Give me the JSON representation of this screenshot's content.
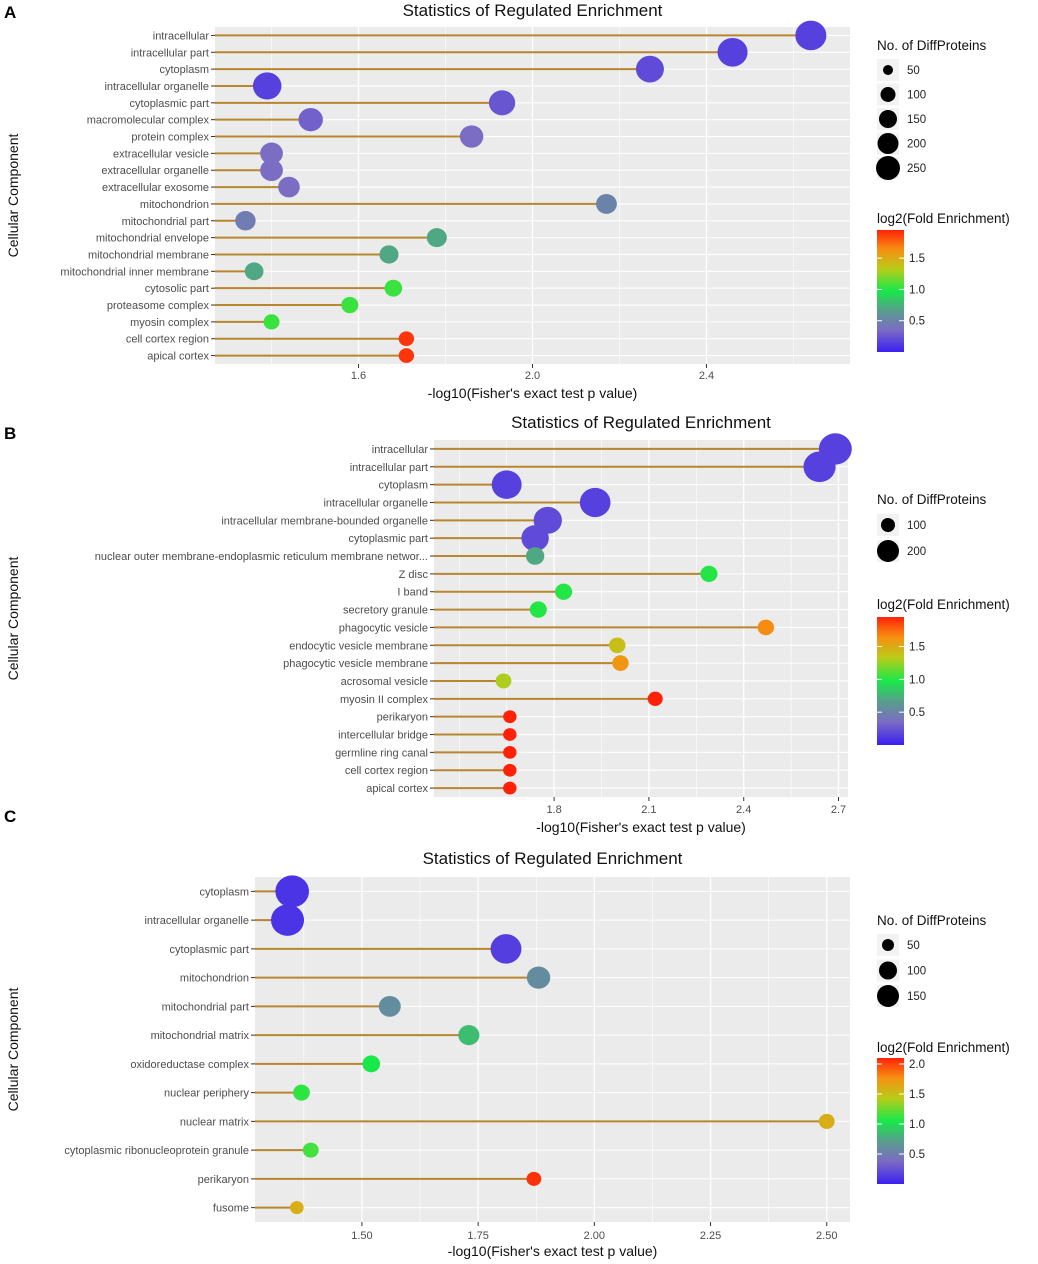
{
  "chart_data": [
    {
      "panel": "A",
      "type": "scatter",
      "title": "Statistics of Regulated Enrichment",
      "xlabel": "-log10(Fisher's exact test p value)",
      "ylabel": "Cellular Component",
      "x_ticks": [
        "1.6",
        "2.0",
        "2.4"
      ],
      "xlim": [
        1.27,
        2.73
      ],
      "categories": [
        "intracellular",
        "intracellular part",
        "cytoplasm",
        "intracellular organelle",
        "cytoplasmic part",
        "macromolecular complex",
        "protein complex",
        "extracellular vesicle",
        "extracellular organelle",
        "extracellular exosome",
        "mitochondrion",
        "mitochondrial part",
        "mitochondrial envelope",
        "mitochondrial membrane",
        "mitochondrial inner membrane",
        "cytosolic part",
        "proteasome complex",
        "myosin complex",
        "cell cortex region",
        "apical cortex"
      ],
      "x": [
        2.64,
        2.46,
        2.27,
        1.39,
        1.93,
        1.49,
        1.86,
        1.4,
        1.4,
        1.44,
        2.17,
        1.34,
        1.78,
        1.67,
        1.36,
        1.68,
        1.58,
        1.4,
        1.71,
        1.71
      ],
      "size": [
        260,
        240,
        200,
        210,
        170,
        140,
        125,
        115,
        115,
        100,
        90,
        85,
        80,
        70,
        65,
        55,
        50,
        40,
        35,
        35
      ],
      "fold": [
        0.15,
        0.15,
        0.2,
        0.15,
        0.25,
        0.3,
        0.35,
        0.35,
        0.35,
        0.35,
        0.5,
        0.45,
        0.7,
        0.7,
        0.7,
        1.05,
        1.05,
        1.05,
        1.9,
        1.9
      ],
      "legend_size": {
        "title": "No. of DiffProteins",
        "values": [
          "50",
          "100",
          "150",
          "200",
          "250"
        ]
      },
      "legend_color": {
        "title": "log2(Fold Enrichment)",
        "ticks": [
          "1.5",
          "1.0",
          "0.5"
        ],
        "min": 0.0,
        "max": 1.95
      }
    },
    {
      "panel": "B",
      "type": "scatter",
      "title": "Statistics of Regulated Enrichment",
      "xlabel": "-log10(Fisher's exact test p value)",
      "ylabel": "Cellular Component",
      "x_ticks": [
        "1.8",
        "2.1",
        "2.4",
        "2.7"
      ],
      "xlim": [
        1.42,
        2.73
      ],
      "categories": [
        "intracellular",
        "intracellular part",
        "cytoplasm",
        "intracellular organelle",
        "intracellular membrane-bounded organelle",
        "cytoplasmic part",
        "nuclear outer membrane-endoplasmic reticulum membrane networ...",
        "Z disc",
        "I band",
        "secretory granule",
        "phagocytic vesicle",
        "endocytic vesicle membrane",
        "phagocytic vesicle membrane",
        "acrosomal vesicle",
        "myosin II complex",
        "perikaryon",
        "intercellular bridge",
        "germline ring canal",
        "cell cortex region",
        "apical cortex"
      ],
      "x": [
        2.69,
        2.64,
        1.65,
        1.93,
        1.78,
        1.74,
        1.74,
        2.29,
        1.83,
        1.75,
        2.47,
        2.0,
        2.01,
        1.64,
        2.12,
        1.66,
        1.66,
        1.66,
        1.66,
        1.66
      ],
      "size": [
        240,
        230,
        200,
        210,
        180,
        170,
        80,
        70,
        70,
        70,
        65,
        65,
        65,
        60,
        55,
        45,
        45,
        45,
        45,
        45
      ],
      "fold": [
        0.15,
        0.15,
        0.15,
        0.15,
        0.2,
        0.2,
        0.7,
        1.0,
        1.0,
        1.0,
        1.65,
        1.4,
        1.6,
        1.3,
        1.95,
        1.95,
        1.95,
        1.95,
        1.95,
        1.95
      ],
      "legend_size": {
        "title": "No. of DiffProteins",
        "values": [
          "100",
          "200"
        ]
      },
      "legend_color": {
        "title": "log2(Fold Enrichment)",
        "ticks": [
          "1.5",
          "1.0",
          "0.5"
        ],
        "min": 0.0,
        "max": 1.95
      }
    },
    {
      "panel": "C",
      "type": "scatter",
      "title": "Statistics of Regulated Enrichment",
      "xlabel": "-log10(Fisher's exact test p value)",
      "ylabel": "Cellular Component",
      "x_ticks": [
        "1.50",
        "1.75",
        "2.00",
        "2.25",
        "2.50"
      ],
      "xlim": [
        1.27,
        2.55
      ],
      "categories": [
        "cytoplasm",
        "intracellular organelle",
        "cytoplasmic part",
        "mitochondrion",
        "mitochondrial part",
        "mitochondrial matrix",
        "oxidoreductase complex",
        "nuclear periphery",
        "nuclear matrix",
        "cytoplasmic ribonucleoprotein granule",
        "perikaryon",
        "fusome"
      ],
      "x": [
        1.35,
        1.34,
        1.81,
        1.88,
        1.56,
        1.73,
        1.52,
        1.37,
        2.5,
        1.39,
        1.87,
        1.36
      ],
      "size": [
        175,
        170,
        150,
        90,
        80,
        75,
        55,
        50,
        45,
        45,
        40,
        35
      ],
      "fold": [
        0.1,
        0.1,
        0.15,
        0.6,
        0.6,
        0.85,
        1.05,
        1.1,
        1.6,
        1.15,
        2.05,
        1.6
      ],
      "legend_size": {
        "title": "No. of DiffProteins",
        "values": [
          "50",
          "100",
          "150"
        ]
      },
      "legend_color": {
        "title": "log2(Fold Enrichment)",
        "ticks": [
          "2.0",
          "1.5",
          "1.0",
          "0.5"
        ],
        "min": 0.0,
        "max": 2.1
      }
    }
  ],
  "colors": {
    "panel_bg": "#ebebeb",
    "grid": "#ffffff",
    "stem": "#b8862f",
    "gradient": [
      "#3a1ff2",
      "#7b6cc4",
      "#5b9a8f",
      "#18e84a",
      "#b8cc18",
      "#f79012",
      "#ff2208"
    ]
  }
}
